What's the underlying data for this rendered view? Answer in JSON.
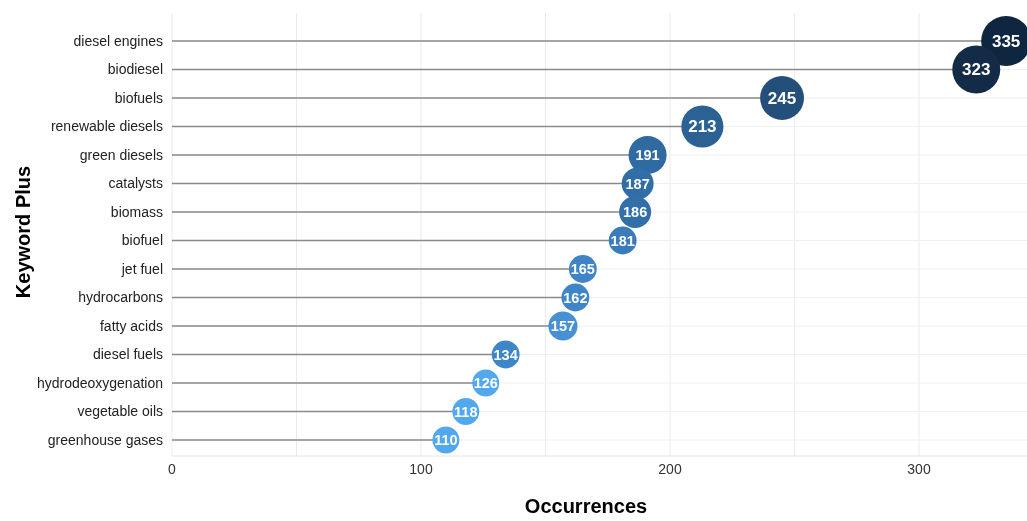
{
  "chart_data": {
    "type": "lollipop",
    "xlabel": "Occurrences",
    "ylabel": "Keyword Plus",
    "orientation": "horizontal",
    "categories": [
      "diesel engines",
      "biodiesel",
      "biofuels",
      "renewable diesels",
      "green diesels",
      "catalysts",
      "biomass",
      "biofuel",
      "jet fuel",
      "hydrocarbons",
      "fatty acids",
      "diesel fuels",
      "hydrodeoxygenation",
      "vegetable oils",
      "greenhouse gases"
    ],
    "values": [
      335,
      323,
      245,
      213,
      191,
      187,
      186,
      181,
      165,
      162,
      157,
      134,
      126,
      118,
      110
    ],
    "sizes": [
      1,
      0.92,
      0.77,
      0.71,
      0.58,
      0.41,
      0.41,
      0.31,
      0.31,
      0.31,
      0.34,
      0.31,
      0.29,
      0.29,
      0.29
    ],
    "colors": [
      "#0f2640",
      "#132b47",
      "#234f7a",
      "#2c6194",
      "#2f6aa2",
      "#316da6",
      "#326fa8",
      "#3a7bbb",
      "#3f84c6",
      "#3f86c8",
      "#4690d3",
      "#3f86c8",
      "#52a8ef",
      "#52a8ef",
      "#52a8ef"
    ],
    "xlim": [
      0,
      350
    ],
    "xticks": [
      0,
      {
        "value": 50,
        "label": null
      },
      100,
      {
        "value": 150,
        "label": null
      },
      200,
      {
        "value": 250,
        "label": null
      },
      300
    ],
    "grid": true,
    "data_labels": true
  }
}
